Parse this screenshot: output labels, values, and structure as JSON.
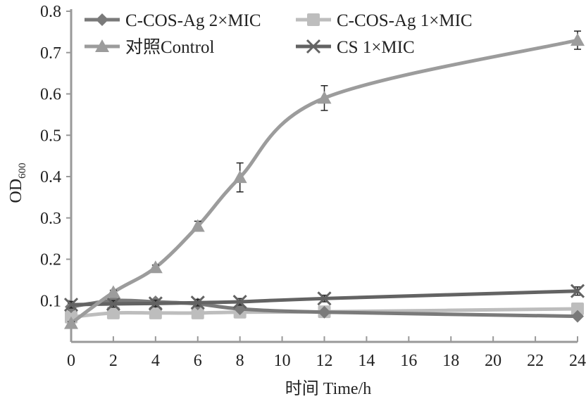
{
  "chart_data": {
    "type": "line",
    "title": "",
    "xlabel": "时间  Time/h",
    "ylabel": "OD",
    "ylabel_sub": "600",
    "xlim": [
      0,
      24
    ],
    "ylim": [
      0,
      0.8
    ],
    "xticks": [
      0,
      2,
      4,
      6,
      8,
      10,
      12,
      14,
      16,
      18,
      20,
      22,
      24
    ],
    "yticks": [
      0.1,
      0.2,
      0.3,
      0.4,
      0.5,
      0.6,
      0.7,
      0.8
    ],
    "grid": false,
    "legend_position": "top",
    "x": [
      0,
      2,
      4,
      6,
      8,
      12,
      24
    ],
    "series": [
      {
        "name": "C-COS-Ag 2×MIC",
        "marker": "diamond",
        "color": "#7a7a7a",
        "values": [
          0.085,
          0.1,
          0.097,
          0.092,
          0.08,
          0.072,
          0.062
        ],
        "errors": [
          0.008,
          0.005,
          0.005,
          0.005,
          0.004,
          0.004,
          0.004
        ]
      },
      {
        "name": "C-COS-Ag 1×MIC",
        "marker": "square",
        "color": "#bdbdbd",
        "values": [
          0.06,
          0.07,
          0.07,
          0.07,
          0.072,
          0.073,
          0.08
        ],
        "errors": [
          0.004,
          0.003,
          0.003,
          0.003,
          0.003,
          0.003,
          0.004
        ]
      },
      {
        "name": "对照Control",
        "marker": "triangle",
        "color": "#9c9c9c",
        "values": [
          0.045,
          0.12,
          0.18,
          0.28,
          0.398,
          0.59,
          0.73
        ],
        "errors": [
          0.004,
          0.005,
          0.006,
          0.012,
          0.035,
          0.03,
          0.022
        ]
      },
      {
        "name": "CS 1×MIC",
        "marker": "x",
        "color": "#636363",
        "values": [
          0.09,
          0.092,
          0.093,
          0.095,
          0.097,
          0.105,
          0.123
        ],
        "errors": [
          0.008,
          0.008,
          0.008,
          0.008,
          0.008,
          0.008,
          0.01
        ]
      }
    ]
  }
}
